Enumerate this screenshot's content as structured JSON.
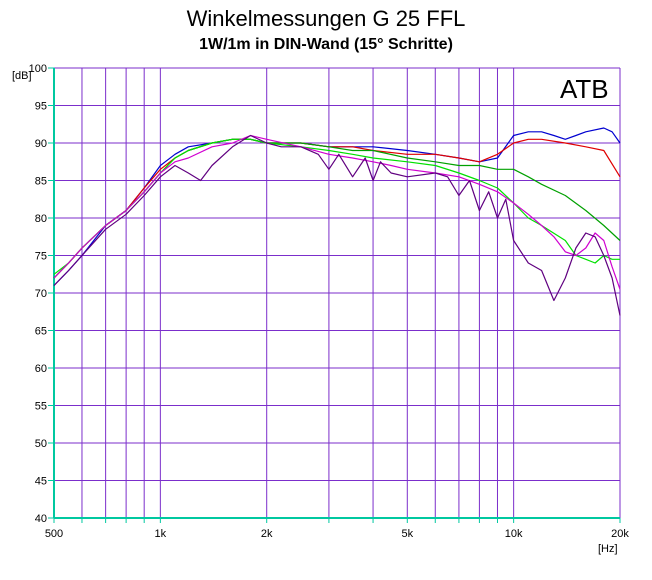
{
  "chart_data": {
    "type": "line",
    "title": "Winkelmessungen G 25 FFL",
    "subtitle": "1W/1m in DIN-Wand (15° Schritte)",
    "badge": "ATB",
    "ylabel": "[dB]",
    "xlabel": "[Hz]",
    "xscale": "log",
    "xlim": [
      500,
      20000
    ],
    "ylim": [
      40,
      100
    ],
    "grid": true,
    "y_ticks": [
      {
        "value": 40,
        "label": "40"
      },
      {
        "value": 45,
        "label": "45"
      },
      {
        "value": 50,
        "label": "50"
      },
      {
        "value": 55,
        "label": "55"
      },
      {
        "value": 60,
        "label": "60"
      },
      {
        "value": 65,
        "label": "65"
      },
      {
        "value": 70,
        "label": "70"
      },
      {
        "value": 75,
        "label": "75"
      },
      {
        "value": 80,
        "label": "80"
      },
      {
        "value": 85,
        "label": "85"
      },
      {
        "value": 90,
        "label": "90"
      },
      {
        "value": 95,
        "label": "95"
      },
      {
        "value": 100,
        "label": "100"
      }
    ],
    "x_ticks": [
      {
        "value": 500,
        "label": "500"
      },
      {
        "value": 1000,
        "label": "1k"
      },
      {
        "value": 2000,
        "label": "2k"
      },
      {
        "value": 5000,
        "label": "5k"
      },
      {
        "value": 10000,
        "label": "10k"
      },
      {
        "value": 20000,
        "label": "20k"
      }
    ],
    "x_grid": [
      500,
      600,
      700,
      800,
      900,
      1000,
      2000,
      3000,
      4000,
      5000,
      6000,
      7000,
      8000,
      9000,
      10000,
      20000
    ],
    "colors": {
      "grid": "#7b2ecb",
      "axis": "#00c8a0"
    },
    "series": [
      {
        "color": "#0000d0",
        "x": [
          500,
          550,
          600,
          700,
          800,
          900,
          1000,
          1100,
          1200,
          1400,
          1600,
          1800,
          2000,
          2500,
          3000,
          3500,
          4000,
          5000,
          6000,
          7000,
          8000,
          9000,
          10000,
          11000,
          12000,
          13000,
          14000,
          15000,
          16000,
          18000,
          19000,
          20000
        ],
        "y": [
          71,
          73,
          75,
          79,
          81,
          84,
          87,
          88.5,
          89.5,
          90,
          90.5,
          90.5,
          90,
          90,
          89.5,
          89.5,
          89.5,
          89,
          88.5,
          88,
          87.5,
          88,
          91,
          91.5,
          91.5,
          91,
          90.5,
          91,
          91.5,
          92,
          91.5,
          90
        ]
      },
      {
        "color": "#e00000",
        "x": [
          500,
          550,
          600,
          700,
          800,
          900,
          1000,
          1100,
          1200,
          1400,
          1600,
          1800,
          2000,
          2500,
          3000,
          3500,
          4000,
          5000,
          6000,
          7000,
          8000,
          9000,
          10000,
          11000,
          12000,
          14000,
          16000,
          18000,
          20000
        ],
        "y": [
          72,
          74,
          76,
          79,
          81,
          84,
          86.5,
          88,
          89,
          90,
          90.5,
          90.5,
          90,
          90,
          89.5,
          89.5,
          89,
          88.5,
          88.5,
          88,
          87.5,
          88.5,
          90,
          90.5,
          90.5,
          90,
          89.5,
          89,
          85.5
        ]
      },
      {
        "color": "#00a000",
        "x": [
          500,
          550,
          600,
          700,
          800,
          900,
          1000,
          1100,
          1200,
          1400,
          1600,
          1800,
          2000,
          2500,
          3000,
          3500,
          4000,
          5000,
          6000,
          7000,
          8000,
          9000,
          10000,
          11000,
          12000,
          14000,
          16000,
          18000,
          20000
        ],
        "y": [
          72,
          74,
          76,
          79,
          81,
          83.5,
          86,
          88,
          89,
          90,
          90.5,
          90.5,
          90,
          90,
          89.5,
          89,
          89,
          88,
          87.5,
          87,
          87,
          86.5,
          86.5,
          85.5,
          84.5,
          83,
          81,
          79,
          77
        ]
      },
      {
        "color": "#00e000",
        "x": [
          500,
          550,
          600,
          700,
          800,
          900,
          1000,
          1100,
          1200,
          1400,
          1600,
          1800,
          2000,
          2500,
          3000,
          3500,
          4000,
          5000,
          6000,
          7000,
          8000,
          9000,
          10000,
          11000,
          12000,
          14000,
          15000,
          16000,
          17000,
          18000,
          19000,
          20000
        ],
        "y": [
          72.5,
          74,
          76,
          79,
          81,
          83.5,
          86,
          88,
          89,
          90,
          90.5,
          90.5,
          90,
          89.5,
          89,
          88.5,
          88,
          87.5,
          87,
          86,
          85,
          84,
          82,
          80,
          79,
          77,
          75,
          74.5,
          74,
          75,
          74.5,
          74.5
        ]
      },
      {
        "color": "#d000d0",
        "x": [
          500,
          550,
          600,
          700,
          800,
          900,
          1000,
          1100,
          1200,
          1400,
          1600,
          1800,
          2000,
          2500,
          3000,
          3500,
          4000,
          4500,
          5000,
          6000,
          7000,
          8000,
          9000,
          10000,
          11000,
          12000,
          13000,
          14000,
          15000,
          16000,
          17000,
          18000,
          19000,
          20000
        ],
        "y": [
          72,
          74,
          76,
          79,
          81,
          83.5,
          86,
          87.5,
          88,
          89.5,
          90,
          91,
          90.5,
          89.5,
          88.5,
          88,
          87.5,
          87,
          86.5,
          86,
          85.5,
          84.5,
          83.5,
          82,
          80.5,
          79,
          77.5,
          75.5,
          75,
          76,
          78,
          77,
          73.5,
          70.5
        ]
      },
      {
        "color": "#600080",
        "x": [
          500,
          550,
          600,
          700,
          800,
          900,
          1000,
          1100,
          1200,
          1300,
          1400,
          1600,
          1800,
          2000,
          2200,
          2500,
          2800,
          3000,
          3200,
          3500,
          3800,
          4000,
          4200,
          4500,
          5000,
          6000,
          6500,
          7000,
          7500,
          8000,
          8500,
          9000,
          9500,
          10000,
          11000,
          12000,
          13000,
          14000,
          15000,
          16000,
          17000,
          18000,
          19000,
          20000
        ],
        "y": [
          71,
          73,
          75,
          78.5,
          80.5,
          83,
          85.5,
          87,
          86,
          85,
          87,
          89.5,
          91,
          90,
          89.5,
          89.5,
          88.5,
          86.5,
          88.5,
          85.5,
          88,
          85,
          87.5,
          86,
          85.5,
          86,
          85.5,
          83,
          85,
          81,
          83.5,
          80,
          82.5,
          77,
          74,
          73,
          69,
          72,
          76,
          78,
          77.5,
          75,
          72,
          67
        ]
      }
    ]
  }
}
